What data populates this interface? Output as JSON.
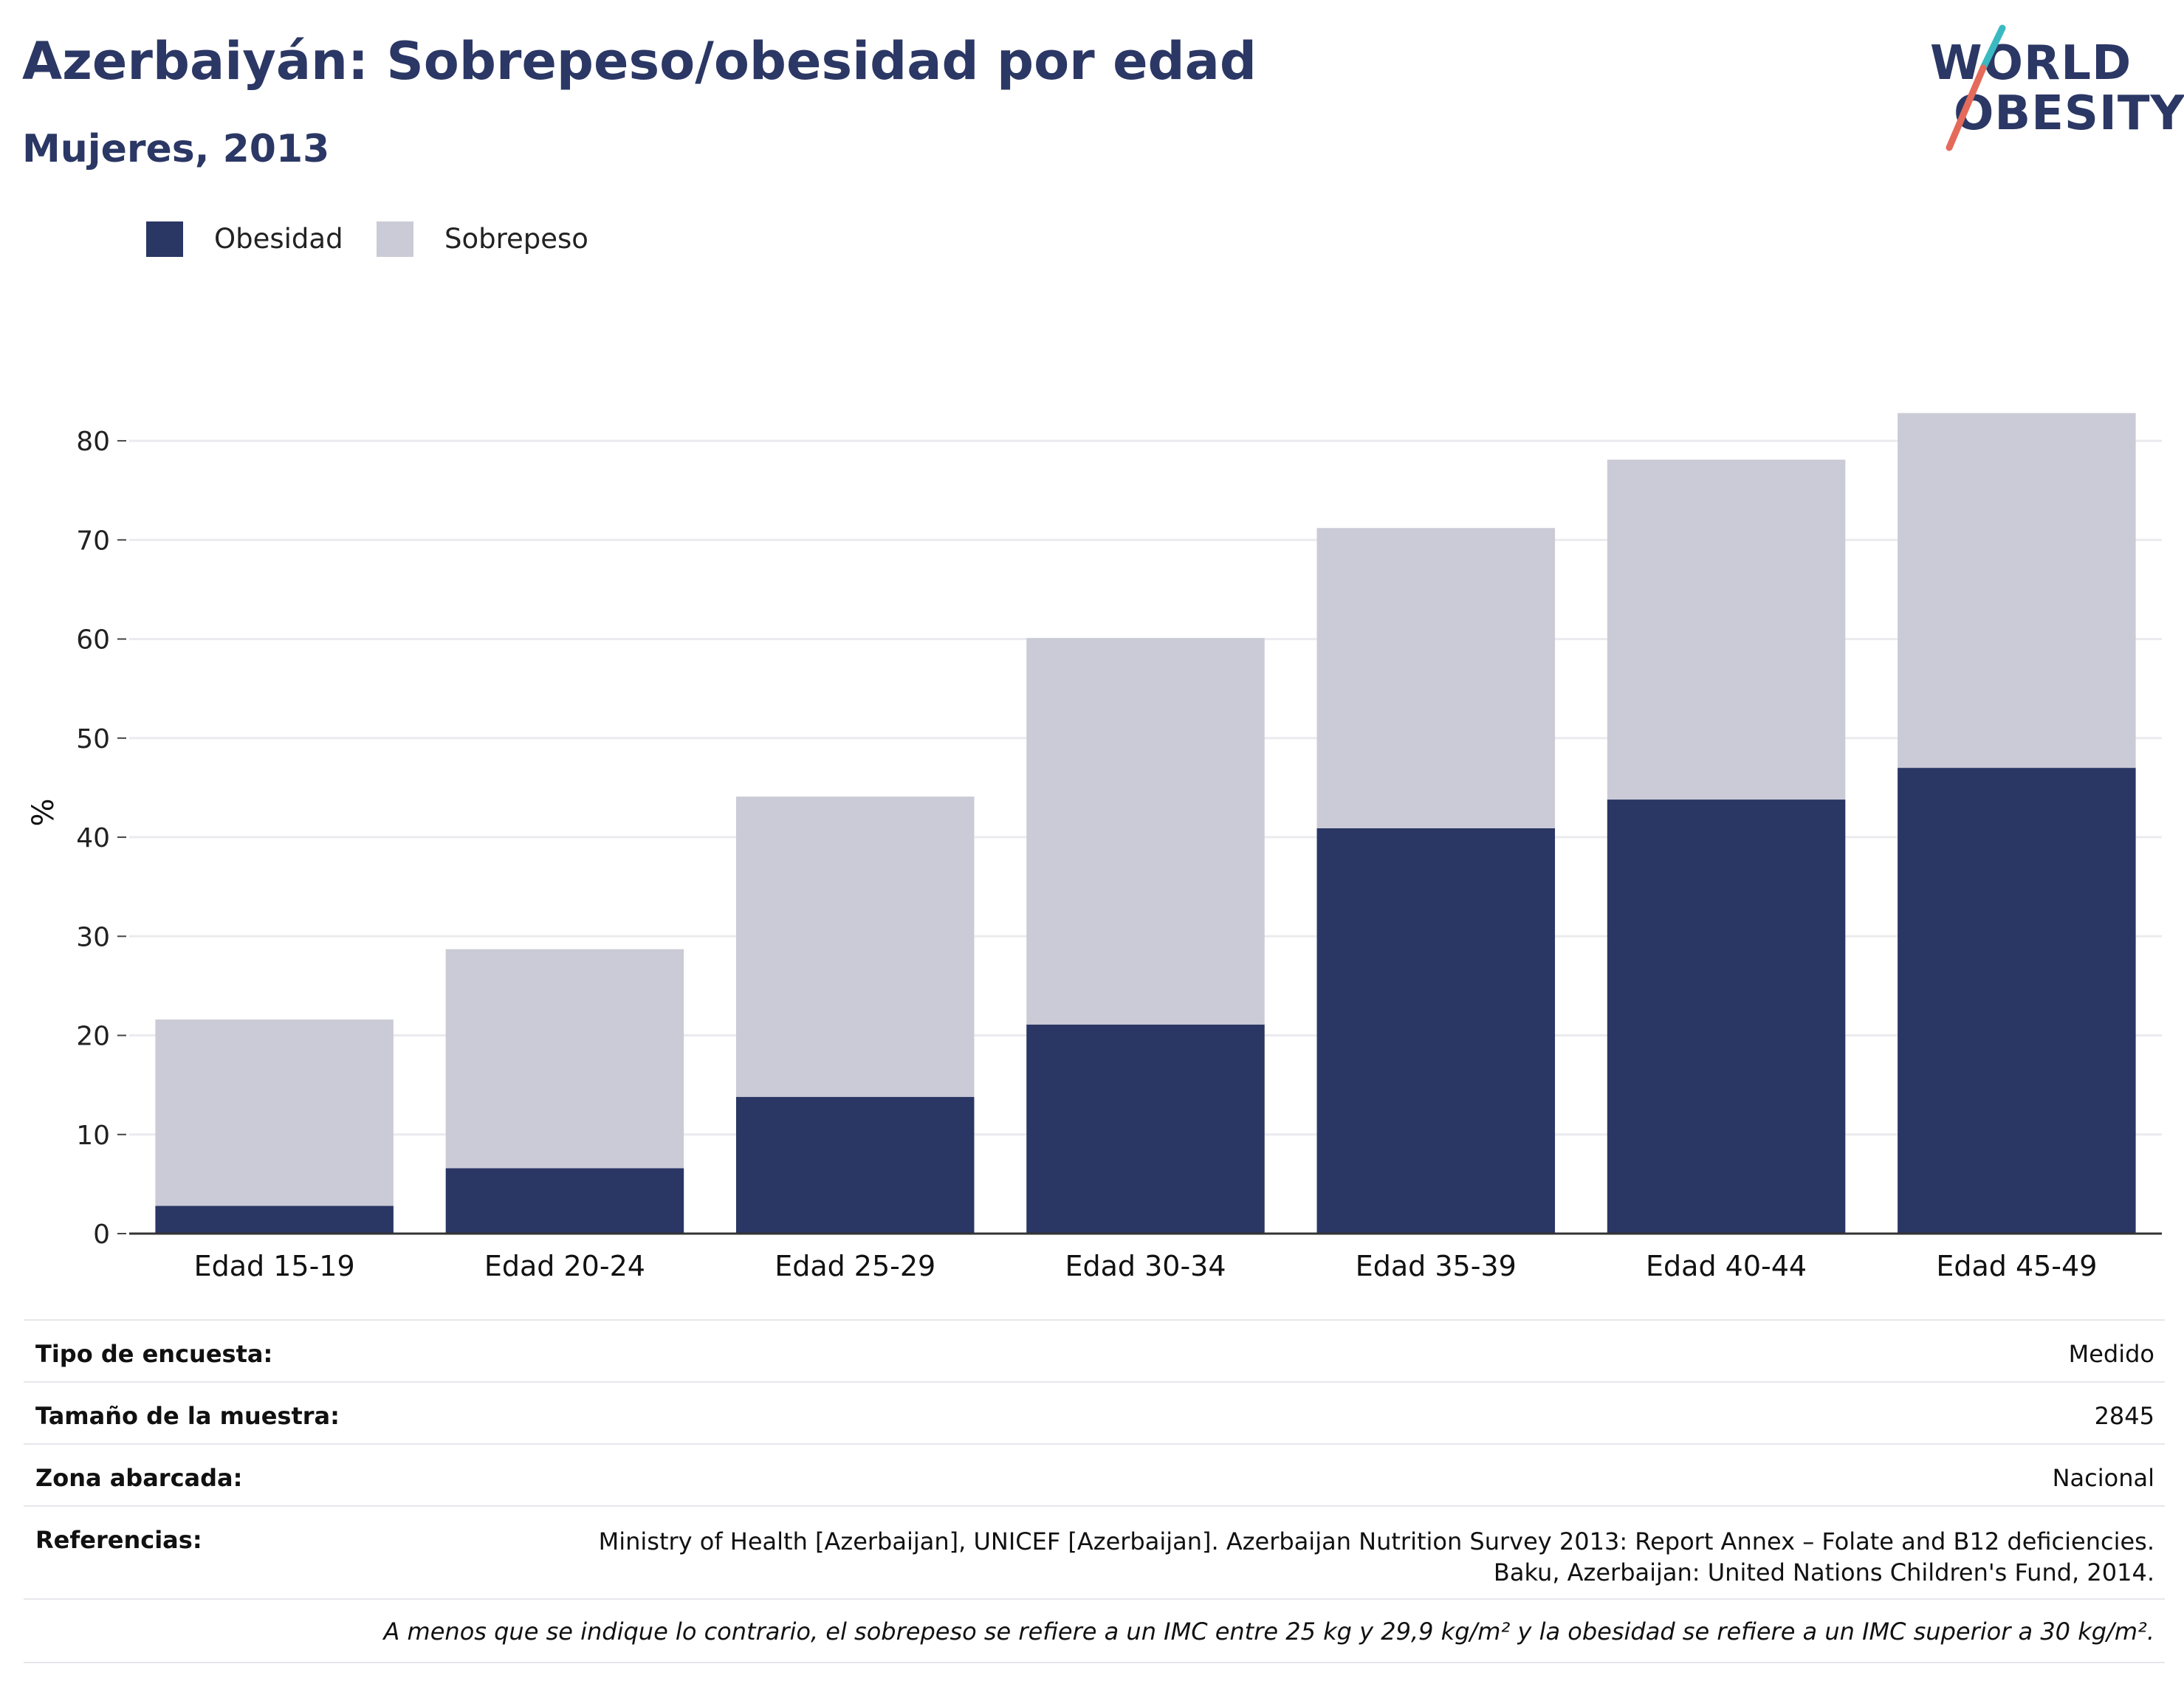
{
  "title": "Azerbaiyán: Sobrepeso/obesidad por edad",
  "subtitle": "Mujeres, 2013",
  "logo": {
    "line1": "WORLD",
    "line2": "OBESITY"
  },
  "colors": {
    "obesidad": "#2a3664",
    "sobrepeso": "#cacbd6",
    "title": "#2b3764",
    "grid": "#ebebef",
    "axis": "#333333",
    "logo_teal": "#3bb9c0",
    "logo_coral": "#e46a5a"
  },
  "legend": [
    {
      "label": "Obesidad",
      "color": "#2a3664"
    },
    {
      "label": "Sobrepeso",
      "color": "#cacbd6"
    }
  ],
  "chart_data": {
    "type": "bar",
    "stacked": true,
    "categories": [
      "Edad 15-19",
      "Edad 20-24",
      "Edad 25-29",
      "Edad 30-34",
      "Edad 35-39",
      "Edad 40-44",
      "Edad 45-49"
    ],
    "series": [
      {
        "name": "Obesidad",
        "values": [
          2.8,
          6.6,
          13.8,
          21.1,
          40.9,
          43.8,
          47.0
        ]
      },
      {
        "name": "Sobrepeso",
        "values": [
          18.8,
          22.1,
          30.3,
          39.0,
          30.3,
          34.3,
          35.8
        ]
      }
    ],
    "ylabel": "%",
    "ylim": [
      0,
      85
    ],
    "yticks": [
      0,
      10,
      20,
      30,
      40,
      50,
      60,
      70,
      80
    ],
    "grid": true,
    "legend_position": "top-left"
  },
  "info": {
    "survey_type": {
      "label": "Tipo de encuesta:",
      "value": "Medido"
    },
    "sample_size": {
      "label": "Tamaño de la muestra:",
      "value": "2845"
    },
    "area": {
      "label": "Zona abarcada:",
      "value": "Nacional"
    },
    "references": {
      "label": "Referencias:",
      "line1": "Ministry of Health [Azerbaijan], UNICEF [Azerbaijan]. Azerbaijan Nutrition Survey 2013: Report Annex – Folate and B12 deficiencies.",
      "line2": "Baku, Azerbaijan: United Nations Children's Fund, 2014."
    },
    "note": "A menos que se indique lo contrario, el sobrepeso se refiere a un IMC entre 25 kg y 29,9 kg/m² y la obesidad se refiere a un IMC superior a 30 kg/m²."
  }
}
